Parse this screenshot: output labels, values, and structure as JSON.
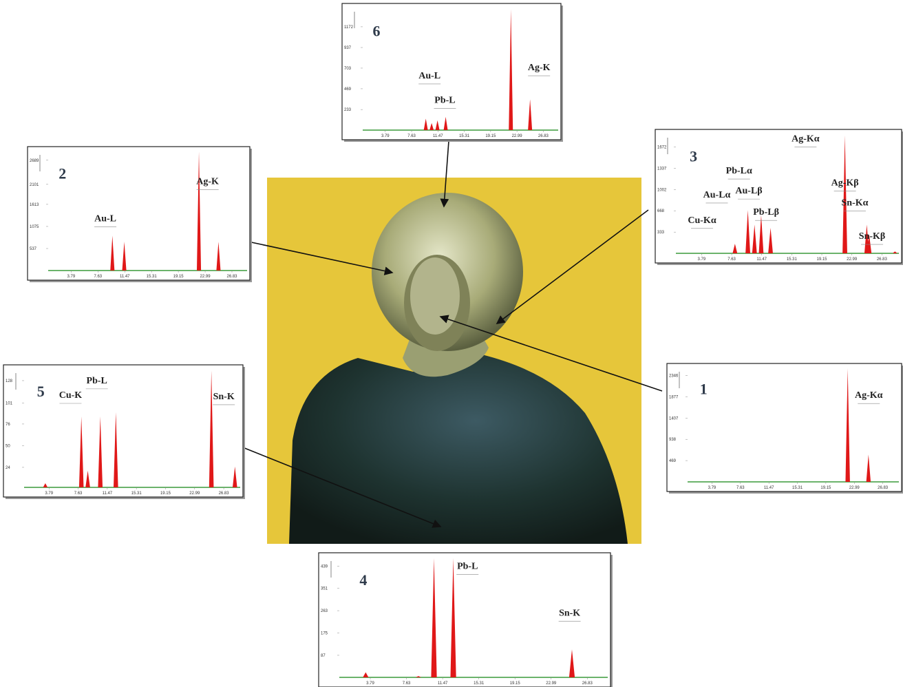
{
  "chart_data": [
    {
      "type": "spectrum",
      "title": "1",
      "color": "#e01818",
      "annotations": [
        "Ag-Kα"
      ],
      "x": [
        22.1,
        24.9
      ],
      "values": [
        2500,
        600
      ],
      "xlim": [
        0.5,
        29
      ],
      "ylim": [
        0,
        2520
      ],
      "xticks": [
        3.79,
        7.63,
        11.47,
        15.31,
        19.15,
        22.99,
        26.83
      ],
      "yticks": [
        469,
        938,
        1407,
        1877,
        2346
      ]
    },
    {
      "type": "spectrum",
      "title": "2",
      "color": "#e01818",
      "annotations": [
        "Au-L",
        "Ag-K"
      ],
      "x": [
        9.7,
        11.4,
        22.1,
        24.9
      ],
      "values": [
        850,
        700,
        2900,
        700
      ],
      "xlim": [
        0.5,
        29
      ],
      "ylim": [
        0,
        2920
      ],
      "xticks": [
        3.79,
        7.63,
        11.47,
        15.31,
        19.15,
        22.99,
        26.83
      ],
      "yticks": [
        537,
        1075,
        1613,
        2101,
        2689
      ]
    },
    {
      "type": "spectrum",
      "title": "3",
      "color": "#e01818",
      "annotations": [
        "Ag-Kα",
        "Pb-Lα",
        "Au-Lα",
        "Au-Lβ",
        "Cu-Kα",
        "Pb-Lβ",
        "Ag-Kβ",
        "Sn-Kα",
        "Sn-Kβ"
      ],
      "x": [
        8.05,
        9.7,
        10.55,
        11.4,
        12.6,
        22.1,
        24.9,
        25.2,
        28.5
      ],
      "values": [
        150,
        680,
        450,
        600,
        400,
        1850,
        450,
        300,
        30
      ],
      "xlim": [
        0.5,
        29
      ],
      "ylim": [
        0,
        1880
      ],
      "xticks": [
        3.79,
        7.63,
        11.47,
        15.31,
        19.15,
        22.99,
        26.83
      ],
      "yticks": [
        333,
        668,
        1002,
        1337,
        1672
      ]
    },
    {
      "type": "spectrum",
      "title": "4",
      "color": "#e01818",
      "annotations": [
        "Pb-L",
        "Sn-K"
      ],
      "x": [
        3.3,
        8.9,
        10.55,
        12.6,
        25.2
      ],
      "values": [
        20,
        5,
        470,
        470,
        110
      ],
      "xlim": [
        0.5,
        29
      ],
      "ylim": [
        0,
        475
      ],
      "xticks": [
        3.79,
        7.63,
        11.47,
        15.31,
        19.15,
        22.99,
        26.83
      ],
      "yticks": [
        87,
        175,
        263,
        351,
        439
      ]
    },
    {
      "type": "spectrum",
      "title": "5",
      "color": "#e01818",
      "annotations": [
        "Cu-K",
        "Pb-L",
        "Sn-K"
      ],
      "x": [
        3.3,
        8.05,
        8.9,
        10.55,
        12.6,
        25.2,
        28.3
      ],
      "values": [
        5,
        85,
        20,
        85,
        90,
        140,
        25
      ],
      "xlim": [
        0.5,
        29
      ],
      "ylim": [
        0,
        142
      ],
      "xticks": [
        3.79,
        7.63,
        11.47,
        15.31,
        19.15,
        22.99,
        26.83
      ],
      "yticks": [
        24,
        50,
        76,
        101,
        128
      ]
    },
    {
      "type": "spectrum",
      "title": "6",
      "color": "#e01818",
      "annotations": [
        "Au-L",
        "Pb-L",
        "Ag-K"
      ],
      "x": [
        9.7,
        10.55,
        11.4,
        12.6,
        22.1,
        24.9
      ],
      "values": [
        130,
        80,
        110,
        150,
        1370,
        350
      ],
      "xlim": [
        0.5,
        29
      ],
      "ylim": [
        0,
        1390
      ],
      "xticks": [
        3.79,
        7.63,
        11.47,
        15.31,
        19.15,
        22.99,
        26.83
      ],
      "yticks": [
        233,
        469,
        703,
        937,
        1172
      ]
    }
  ]
}
